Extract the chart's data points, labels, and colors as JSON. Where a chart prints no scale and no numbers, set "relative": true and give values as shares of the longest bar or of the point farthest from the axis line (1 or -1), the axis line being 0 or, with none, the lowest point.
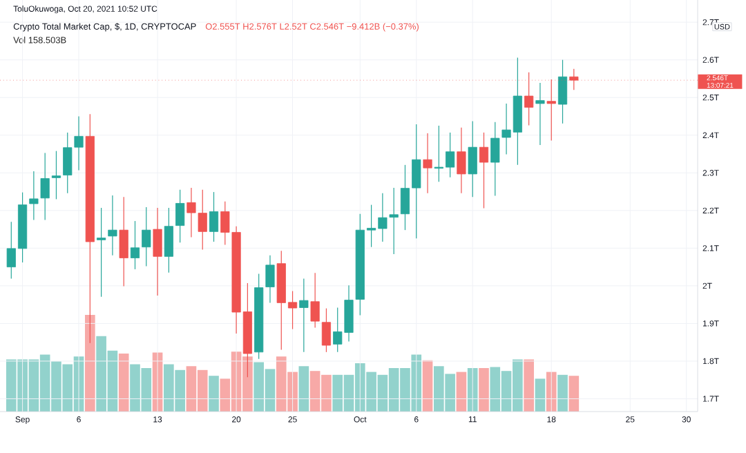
{
  "chart_data": [
    {
      "type": "candlestick",
      "title": "Crypto Total Market Cap, $, 1D, CRYPTOCAP",
      "subtitle": "O2.555T H2.576T L2.52T C2.546T −9.412B (−0.37%)",
      "ylabel": "USD",
      "annotations": [
        "ToluOkuwoga, Oct 20, 2021 10:52 UTC",
        "13:07:21"
      ],
      "x": [
        "2021-08-31",
        "2021-09-01",
        "2021-09-02",
        "2021-09-03",
        "2021-09-04",
        "2021-09-05",
        "2021-09-06",
        "2021-09-07",
        "2021-09-08",
        "2021-09-09",
        "2021-09-10",
        "2021-09-11",
        "2021-09-12",
        "2021-09-13",
        "2021-09-14",
        "2021-09-15",
        "2021-09-16",
        "2021-09-17",
        "2021-09-18",
        "2021-09-19",
        "2021-09-20",
        "2021-09-21",
        "2021-09-22",
        "2021-09-23",
        "2021-09-24",
        "2021-09-25",
        "2021-09-26",
        "2021-09-27",
        "2021-09-28",
        "2021-09-29",
        "2021-09-30",
        "2021-10-01",
        "2021-10-02",
        "2021-10-03",
        "2021-10-04",
        "2021-10-05",
        "2021-10-06",
        "2021-10-07",
        "2021-10-08",
        "2021-10-09",
        "2021-10-10",
        "2021-10-11",
        "2021-10-12",
        "2021-10-13",
        "2021-10-14",
        "2021-10-15",
        "2021-10-16",
        "2021-10-17",
        "2021-10-18",
        "2021-10-19",
        "2021-10-20"
      ],
      "ohlc": [
        [
          2.05,
          2.17,
          2.019,
          2.099
        ],
        [
          2.099,
          2.248,
          2.062,
          2.215
        ],
        [
          2.218,
          2.304,
          2.175,
          2.231
        ],
        [
          2.233,
          2.353,
          2.175,
          2.285
        ],
        [
          2.287,
          2.358,
          2.23,
          2.292
        ],
        [
          2.294,
          2.407,
          2.246,
          2.367
        ],
        [
          2.368,
          2.45,
          2.307,
          2.397
        ],
        [
          2.397,
          2.456,
          1.848,
          2.117
        ],
        [
          2.122,
          2.207,
          1.971,
          2.127
        ],
        [
          2.132,
          2.24,
          2.081,
          2.148
        ],
        [
          2.148,
          2.236,
          1.999,
          2.074
        ],
        [
          2.074,
          2.172,
          2.044,
          2.101
        ],
        [
          2.103,
          2.209,
          2.052,
          2.148
        ],
        [
          2.15,
          2.207,
          1.974,
          2.078
        ],
        [
          2.078,
          2.207,
          2.035,
          2.158
        ],
        [
          2.16,
          2.255,
          2.115,
          2.219
        ],
        [
          2.221,
          2.26,
          2.129,
          2.194
        ],
        [
          2.193,
          2.255,
          2.096,
          2.144
        ],
        [
          2.144,
          2.249,
          2.117,
          2.197
        ],
        [
          2.197,
          2.224,
          2.109,
          2.142
        ],
        [
          2.142,
          2.158,
          1.873,
          1.93
        ],
        [
          1.931,
          2.007,
          1.757,
          1.82
        ],
        [
          1.824,
          2.032,
          1.806,
          1.995
        ],
        [
          1.997,
          2.081,
          1.955,
          2.055
        ],
        [
          2.059,
          2.093,
          1.83,
          1.955
        ],
        [
          1.956,
          1.986,
          1.885,
          1.941
        ],
        [
          1.942,
          2.019,
          1.824,
          1.961
        ],
        [
          1.958,
          2.034,
          1.889,
          1.906
        ],
        [
          1.903,
          1.94,
          1.824,
          1.842
        ],
        [
          1.845,
          1.942,
          1.824,
          1.878
        ],
        [
          1.876,
          2.001,
          1.852,
          1.962
        ],
        [
          1.964,
          2.191,
          1.922,
          2.148
        ],
        [
          2.148,
          2.215,
          2.103,
          2.153
        ],
        [
          2.152,
          2.246,
          2.117,
          2.181
        ],
        [
          2.182,
          2.26,
          2.084,
          2.189
        ],
        [
          2.191,
          2.321,
          2.148,
          2.259
        ],
        [
          2.26,
          2.429,
          2.126,
          2.335
        ],
        [
          2.335,
          2.405,
          2.246,
          2.313
        ],
        [
          2.312,
          2.425,
          2.276,
          2.315
        ],
        [
          2.315,
          2.407,
          2.288,
          2.356
        ],
        [
          2.356,
          2.42,
          2.246,
          2.297
        ],
        [
          2.297,
          2.437,
          2.236,
          2.368
        ],
        [
          2.368,
          2.407,
          2.206,
          2.328
        ],
        [
          2.328,
          2.435,
          2.239,
          2.392
        ],
        [
          2.394,
          2.484,
          2.349,
          2.414
        ],
        [
          2.408,
          2.606,
          2.321,
          2.504
        ],
        [
          2.504,
          2.567,
          2.426,
          2.474
        ],
        [
          2.484,
          2.539,
          2.374,
          2.492
        ],
        [
          2.49,
          2.548,
          2.386,
          2.484
        ],
        [
          2.482,
          2.6,
          2.431,
          2.555
        ],
        [
          2.555,
          2.576,
          2.52,
          2.546
        ]
      ],
      "colors": [
        "#26a69a",
        "#26a69a",
        "#26a69a",
        "#26a69a",
        "#26a69a",
        "#26a69a",
        "#26a69a",
        "#ef5350",
        "#26a69a",
        "#26a69a",
        "#ef5350",
        "#26a69a",
        "#26a69a",
        "#ef5350",
        "#26a69a",
        "#26a69a",
        "#ef5350",
        "#ef5350",
        "#26a69a",
        "#ef5350",
        "#ef5350",
        "#ef5350",
        "#26a69a",
        "#26a69a",
        "#ef5350",
        "#ef5350",
        "#26a69a",
        "#ef5350",
        "#ef5350",
        "#26a69a",
        "#26a69a",
        "#26a69a",
        "#26a69a",
        "#26a69a",
        "#26a69a",
        "#26a69a",
        "#26a69a",
        "#ef5350",
        "#26a69a",
        "#26a69a",
        "#ef5350",
        "#26a69a",
        "#ef5350",
        "#26a69a",
        "#26a69a",
        "#26a69a",
        "#ef5350",
        "#26a69a",
        "#ef5350",
        "#26a69a",
        "#ef5350"
      ],
      "xlim": [
        "2021-08-30",
        "2021-10-31"
      ],
      "xticks": [
        {
          "value": "2021-09-01",
          "label": "Sep"
        },
        {
          "value": "2021-09-06",
          "label": "6"
        },
        {
          "value": "2021-09-13",
          "label": "13"
        },
        {
          "value": "2021-09-20",
          "label": "20"
        },
        {
          "value": "2021-09-25",
          "label": "25"
        },
        {
          "value": "2021-10-01",
          "label": "Oct"
        },
        {
          "value": "2021-10-06",
          "label": "6"
        },
        {
          "value": "2021-10-11",
          "label": "11"
        },
        {
          "value": "2021-10-18",
          "label": "18"
        },
        {
          "value": "2021-10-25",
          "label": "25"
        },
        {
          "value": "2021-10-30",
          "label": "30"
        }
      ],
      "ylim": [
        1.666,
        2.759
      ],
      "yticks": [
        {
          "value": 1.7,
          "label": "1.7T"
        },
        {
          "value": 1.8,
          "label": "1.8T"
        },
        {
          "value": 1.9,
          "label": "1.9T"
        },
        {
          "value": 2.0,
          "label": "2T"
        },
        {
          "value": 2.1,
          "label": "2.1T"
        },
        {
          "value": 2.2,
          "label": "2.2T"
        },
        {
          "value": 2.3,
          "label": "2.3T"
        },
        {
          "value": 2.4,
          "label": "2.4T"
        },
        {
          "value": 2.5,
          "label": "2.5T"
        },
        {
          "value": 2.6,
          "label": "2.6T"
        },
        {
          "value": 2.7,
          "label": "2.7T"
        }
      ],
      "grid": true,
      "ref_lines": [
        {
          "axis": "y",
          "value": 2.546,
          "label": "2.546T",
          "color": "#ef5350",
          "line_style": "dotted"
        }
      ]
    },
    {
      "type": "bar",
      "relative": true,
      "title": "Vol 158.503B",
      "categories": [
        null,
        null,
        null,
        null,
        null,
        null,
        null,
        null,
        null,
        null,
        null,
        null,
        null,
        null,
        null,
        null,
        null,
        null,
        null,
        null,
        null,
        null,
        null,
        null,
        null,
        null,
        null,
        null,
        null,
        null,
        null,
        null,
        null,
        null,
        null,
        null,
        null,
        null,
        null,
        null,
        null,
        null,
        null,
        null,
        null,
        null,
        null,
        null,
        null,
        null,
        null
      ],
      "values": [
        0.54,
        0.54,
        0.54,
        0.59,
        0.52,
        0.49,
        0.57,
        1,
        0.78,
        0.63,
        0.6,
        0.49,
        0.45,
        0.61,
        0.49,
        0.43,
        0.47,
        0.43,
        0.37,
        0.34,
        0.62,
        0.57,
        0.51,
        0.44,
        0.57,
        0.41,
        0.47,
        0.42,
        0.38,
        0.38,
        0.38,
        0.5,
        0.41,
        0.38,
        0.45,
        0.45,
        0.59,
        0.53,
        0.47,
        0.39,
        0.41,
        0.45,
        0.45,
        0.46,
        0.42,
        0.54,
        0.54,
        0.34,
        0.41,
        0.38,
        0.37
      ],
      "colors": [
        "#92d2cc",
        "#92d2cc",
        "#92d2cc",
        "#92d2cc",
        "#92d2cc",
        "#92d2cc",
        "#92d2cc",
        "#f7a9a7",
        "#92d2cc",
        "#92d2cc",
        "#f7a9a7",
        "#92d2cc",
        "#92d2cc",
        "#f7a9a7",
        "#92d2cc",
        "#92d2cc",
        "#f7a9a7",
        "#f7a9a7",
        "#92d2cc",
        "#f7a9a7",
        "#f7a9a7",
        "#f7a9a7",
        "#92d2cc",
        "#92d2cc",
        "#f7a9a7",
        "#f7a9a7",
        "#92d2cc",
        "#f7a9a7",
        "#f7a9a7",
        "#92d2cc",
        "#92d2cc",
        "#92d2cc",
        "#92d2cc",
        "#92d2cc",
        "#92d2cc",
        "#92d2cc",
        "#92d2cc",
        "#f7a9a7",
        "#92d2cc",
        "#92d2cc",
        "#f7a9a7",
        "#92d2cc",
        "#f7a9a7",
        "#92d2cc",
        "#92d2cc",
        "#92d2cc",
        "#f7a9a7",
        "#92d2cc",
        "#f7a9a7",
        "#92d2cc",
        "#f7a9a7"
      ]
    }
  ]
}
